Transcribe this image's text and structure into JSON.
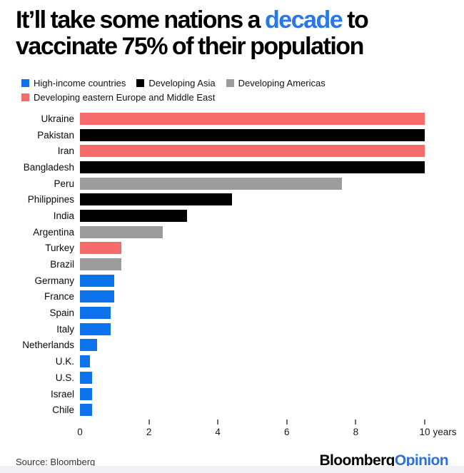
{
  "header": {
    "title_pre": "It’ll take some nations a ",
    "title_highlight": "decade",
    "title_post": " to vaccinate 75% of their population"
  },
  "colors": {
    "high_income": "#0d73ec",
    "developing_asia": "#000000",
    "developing_americas": "#9c9c9c",
    "developing_eeme": "#f66b6b",
    "title_highlight": "#2878e9",
    "opinion_blue": "#2d6fdb"
  },
  "chart_data": {
    "type": "bar",
    "orientation": "horizontal",
    "title": "It'll take some nations a decade to vaccinate 75% of their population",
    "xlabel": "years",
    "xlim": [
      0,
      10
    ],
    "grid": false,
    "legend_position": "top",
    "legend": [
      {
        "group": "high_income",
        "label": "High-income countries"
      },
      {
        "group": "developing_asia",
        "label": "Developing Asia"
      },
      {
        "group": "developing_americas",
        "label": "Developing Americas"
      },
      {
        "group": "developing_eeme",
        "label": "Developing eastern Europe and Middle East"
      }
    ],
    "rows": [
      {
        "label": "Ukraine",
        "value": 10,
        "group": "developing_eeme"
      },
      {
        "label": "Pakistan",
        "value": 10,
        "group": "developing_asia"
      },
      {
        "label": "Iran",
        "value": 10,
        "group": "developing_eeme"
      },
      {
        "label": "Bangladesh",
        "value": 10,
        "group": "developing_asia"
      },
      {
        "label": "Peru",
        "value": 7.6,
        "group": "developing_americas"
      },
      {
        "label": "Philippines",
        "value": 4.4,
        "group": "developing_asia"
      },
      {
        "label": "India",
        "value": 3.1,
        "group": "developing_asia"
      },
      {
        "label": "Argentina",
        "value": 2.4,
        "group": "developing_americas"
      },
      {
        "label": "Turkey",
        "value": 1.2,
        "group": "developing_eeme"
      },
      {
        "label": "Brazil",
        "value": 1.2,
        "group": "developing_americas"
      },
      {
        "label": "Germany",
        "value": 1.0,
        "group": "high_income"
      },
      {
        "label": "France",
        "value": 1.0,
        "group": "high_income"
      },
      {
        "label": "Spain",
        "value": 0.9,
        "group": "high_income"
      },
      {
        "label": "Italy",
        "value": 0.9,
        "group": "high_income"
      },
      {
        "label": "Netherlands",
        "value": 0.5,
        "group": "high_income"
      },
      {
        "label": "U.K.",
        "value": 0.3,
        "group": "high_income"
      },
      {
        "label": "U.S.",
        "value": 0.35,
        "group": "high_income"
      },
      {
        "label": "Israel",
        "value": 0.35,
        "group": "high_income"
      },
      {
        "label": "Chile",
        "value": 0.35,
        "group": "high_income"
      }
    ],
    "x_ticks": [
      {
        "value": 0,
        "label": "0",
        "show_tick": false
      },
      {
        "value": 2,
        "label": "2",
        "show_tick": true
      },
      {
        "value": 4,
        "label": "4",
        "show_tick": true
      },
      {
        "value": 6,
        "label": "6",
        "show_tick": true
      },
      {
        "value": 8,
        "label": "8",
        "show_tick": true
      },
      {
        "value": 10,
        "label": "10",
        "suffix": "years",
        "show_tick": true
      }
    ]
  },
  "footer": {
    "source": "Source: Bloomberg",
    "logo_black": "Bloomberg",
    "logo_blue": "Opinion"
  }
}
